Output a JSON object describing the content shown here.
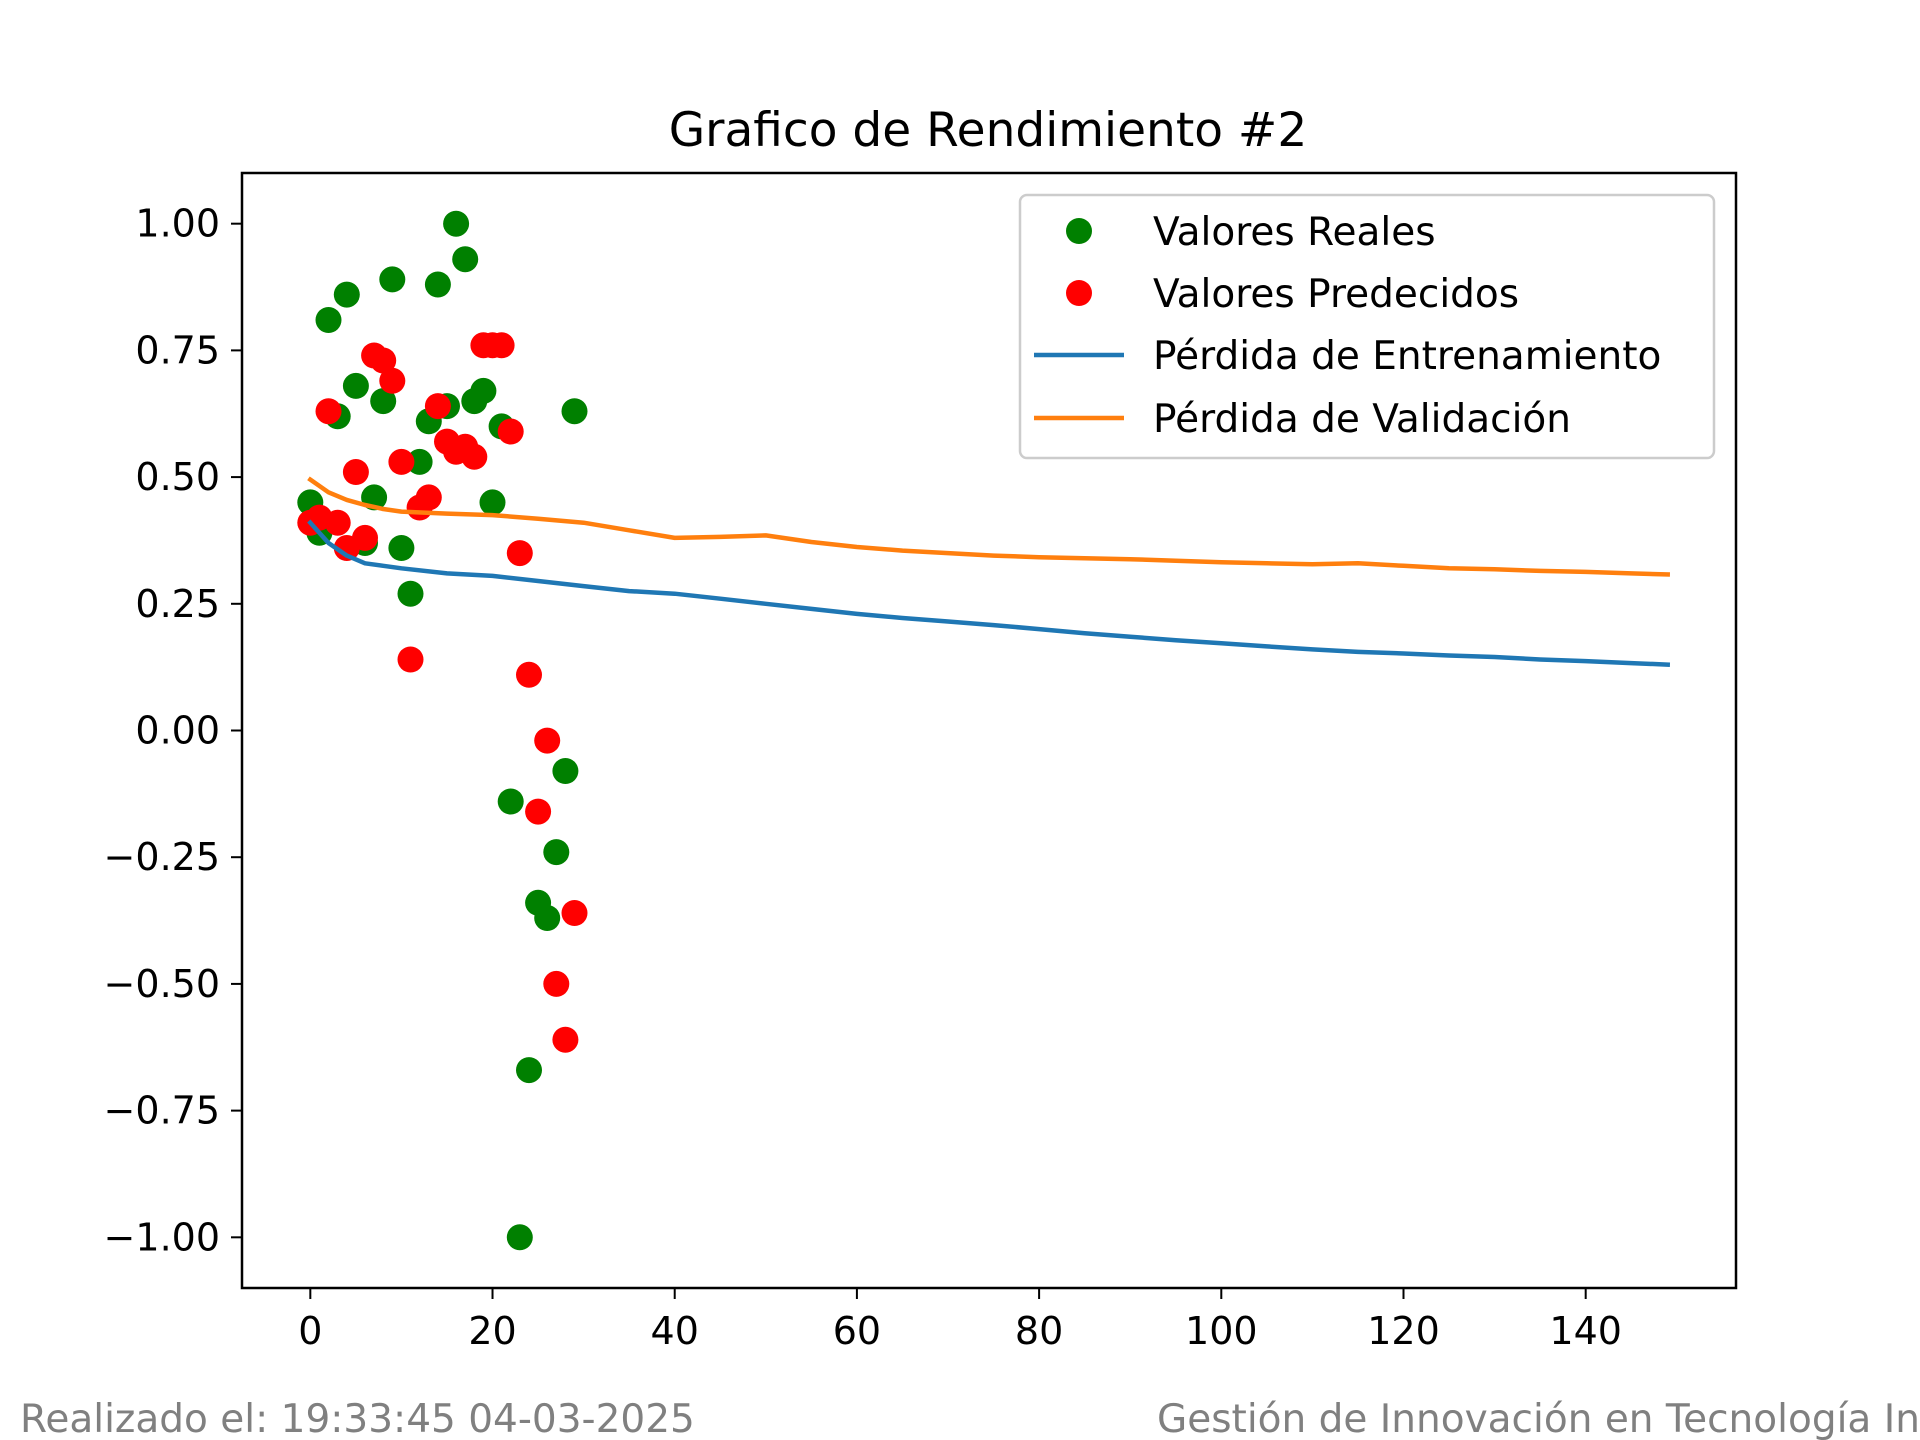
{
  "chart_data": {
    "type": "scatter",
    "title": "Grafico de Rendimiento #2",
    "xlabel": "",
    "ylabel": "",
    "xlim": [
      -7.5,
      156.5
    ],
    "ylim": [
      -1.1,
      1.1
    ],
    "grid": false,
    "legend_position": "top-right",
    "x_ticks": [
      0,
      20,
      40,
      60,
      80,
      100,
      120,
      140
    ],
    "x_tick_labels": [
      "0",
      "20",
      "40",
      "60",
      "80",
      "100",
      "120",
      "140"
    ],
    "y_ticks": [
      1.0,
      0.75,
      0.5,
      0.25,
      0.0,
      -0.25,
      -0.5,
      -0.75,
      -1.0
    ],
    "y_tick_labels": [
      "1.00",
      "0.75",
      "0.50",
      "0.25",
      "0.00",
      "−0.25",
      "−0.50",
      "−0.75",
      "−1.00"
    ],
    "series": [
      {
        "name": "Valores Reales",
        "kind": "scatter",
        "color": "#008000",
        "x": [
          0,
          1,
          2,
          3,
          4,
          5,
          6,
          7,
          8,
          9,
          10,
          11,
          12,
          13,
          14,
          15,
          16,
          17,
          18,
          19,
          20,
          21,
          22,
          23,
          24,
          25,
          26,
          27,
          28,
          29
        ],
        "y": [
          0.45,
          0.39,
          0.81,
          0.62,
          0.86,
          0.68,
          0.37,
          0.46,
          0.65,
          0.89,
          0.36,
          0.27,
          0.53,
          0.61,
          0.88,
          0.64,
          1.0,
          0.93,
          0.65,
          0.67,
          0.45,
          0.6,
          -0.14,
          -1.0,
          -0.67,
          -0.34,
          -0.37,
          -0.24,
          -0.08,
          0.63
        ]
      },
      {
        "name": "Valores Predecidos",
        "kind": "scatter",
        "color": "#ff0000",
        "x": [
          0,
          1,
          2,
          3,
          4,
          5,
          6,
          7,
          8,
          9,
          10,
          11,
          12,
          13,
          14,
          15,
          16,
          17,
          18,
          19,
          20,
          21,
          22,
          23,
          24,
          25,
          26,
          27,
          28,
          29
        ],
        "y": [
          0.41,
          0.42,
          0.63,
          0.41,
          0.36,
          0.51,
          0.38,
          0.74,
          0.73,
          0.69,
          0.53,
          0.14,
          0.44,
          0.46,
          0.64,
          0.57,
          0.55,
          0.56,
          0.54,
          0.76,
          0.76,
          0.76,
          0.59,
          0.35,
          0.11,
          -0.16,
          -0.02,
          -0.5,
          -0.61,
          -0.36
        ]
      },
      {
        "name": "Pérdida de Entrenamiento",
        "kind": "line",
        "color": "#1f77b4",
        "x": [
          0,
          2,
          4,
          6,
          8,
          10,
          15,
          20,
          25,
          30,
          35,
          40,
          45,
          50,
          55,
          60,
          65,
          70,
          75,
          80,
          85,
          90,
          95,
          100,
          105,
          110,
          115,
          120,
          125,
          130,
          135,
          140,
          145,
          149
        ],
        "y": [
          0.41,
          0.37,
          0.345,
          0.33,
          0.325,
          0.32,
          0.31,
          0.305,
          0.295,
          0.285,
          0.275,
          0.27,
          0.26,
          0.25,
          0.24,
          0.23,
          0.222,
          0.215,
          0.208,
          0.2,
          0.192,
          0.185,
          0.178,
          0.172,
          0.166,
          0.16,
          0.155,
          0.152,
          0.148,
          0.145,
          0.14,
          0.137,
          0.133,
          0.13
        ]
      },
      {
        "name": "Pérdida de Validación",
        "kind": "line",
        "color": "#ff7f0e",
        "x": [
          0,
          2,
          4,
          6,
          8,
          10,
          15,
          20,
          25,
          30,
          35,
          40,
          45,
          50,
          55,
          60,
          65,
          70,
          75,
          80,
          85,
          90,
          95,
          100,
          105,
          110,
          115,
          120,
          125,
          130,
          135,
          140,
          145,
          149
        ],
        "y": [
          0.495,
          0.47,
          0.455,
          0.445,
          0.437,
          0.432,
          0.428,
          0.425,
          0.418,
          0.41,
          0.395,
          0.38,
          0.382,
          0.385,
          0.372,
          0.362,
          0.355,
          0.35,
          0.345,
          0.342,
          0.34,
          0.338,
          0.335,
          0.332,
          0.33,
          0.328,
          0.33,
          0.325,
          0.32,
          0.318,
          0.315,
          0.313,
          0.31,
          0.308
        ]
      }
    ]
  },
  "footer": {
    "left": "Realizado el: 19:33:45 04-03-2025",
    "right": "Gestión de Innovación en Tecnología Informática S.C.P. | https://www.gitinformatica.com"
  }
}
